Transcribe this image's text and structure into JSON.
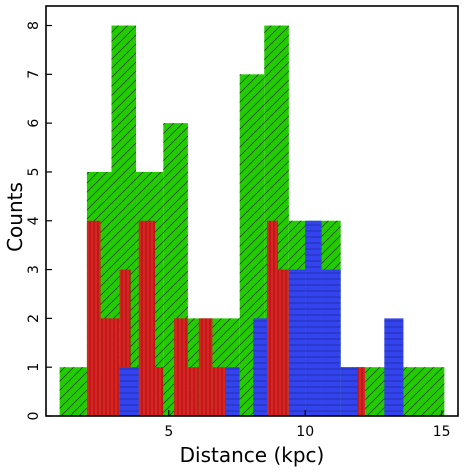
{
  "chart_data": {
    "type": "bar",
    "title": "",
    "xlabel": "Distance (kpc)",
    "ylabel": "Counts",
    "xlim": [
      0.5,
      15.6
    ],
    "ylim": [
      0,
      8.4
    ],
    "xticks": [
      5,
      10,
      15
    ],
    "yticks": [
      0,
      1,
      2,
      3,
      4,
      5,
      6,
      7,
      8
    ],
    "grid": false,
    "legend": "none",
    "series": [
      {
        "color": "#22cc00",
        "hatch": "diagonal",
        "bins": [
          {
            "x0": 1.0,
            "x1": 2.0,
            "value": 1
          },
          {
            "x0": 2.0,
            "x1": 2.9,
            "value": 5
          },
          {
            "x0": 2.9,
            "x1": 3.8,
            "value": 8
          },
          {
            "x0": 3.8,
            "x1": 4.8,
            "value": 5
          },
          {
            "x0": 4.8,
            "x1": 5.7,
            "value": 6
          },
          {
            "x0": 5.7,
            "x1": 6.6,
            "value": 2
          },
          {
            "x0": 6.6,
            "x1": 7.6,
            "value": 2
          },
          {
            "x0": 7.6,
            "x1": 8.5,
            "value": 7
          },
          {
            "x0": 8.5,
            "x1": 9.4,
            "value": 8
          },
          {
            "x0": 9.4,
            "x1": 10.4,
            "value": 4
          },
          {
            "x0": 10.4,
            "x1": 11.3,
            "value": 4
          },
          {
            "x0": 11.3,
            "x1": 12.2,
            "value": 1
          },
          {
            "x0": 12.2,
            "x1": 15.1,
            "value": 1
          }
        ]
      },
      {
        "color": "#dd2222",
        "hatch": "vertical",
        "bins": [
          {
            "x0": 2.0,
            "x1": 2.5,
            "value": 4
          },
          {
            "x0": 2.5,
            "x1": 2.9,
            "value": 2
          },
          {
            "x0": 2.9,
            "x1": 3.2,
            "value": 2
          },
          {
            "x0": 3.2,
            "x1": 3.6,
            "value": 3
          },
          {
            "x0": 3.6,
            "x1": 3.9,
            "value": 1
          },
          {
            "x0": 3.9,
            "x1": 4.5,
            "value": 4
          },
          {
            "x0": 4.5,
            "x1": 4.8,
            "value": 1
          },
          {
            "x0": 5.2,
            "x1": 5.7,
            "value": 2
          },
          {
            "x0": 5.7,
            "x1": 6.1,
            "value": 1
          },
          {
            "x0": 6.1,
            "x1": 6.6,
            "value": 2
          },
          {
            "x0": 6.6,
            "x1": 7.1,
            "value": 1
          },
          {
            "x0": 8.6,
            "x1": 9.0,
            "value": 4
          },
          {
            "x0": 9.0,
            "x1": 9.4,
            "value": 3
          },
          {
            "x0": 11.9,
            "x1": 12.2,
            "value": 1
          }
        ]
      },
      {
        "color": "#3344ee",
        "hatch": "horizontal",
        "bins": [
          {
            "x0": 3.2,
            "x1": 3.9,
            "value": 1
          },
          {
            "x0": 7.1,
            "x1": 7.6,
            "value": 1
          },
          {
            "x0": 8.1,
            "x1": 8.6,
            "value": 2
          },
          {
            "x0": 9.4,
            "x1": 10.0,
            "value": 3
          },
          {
            "x0": 10.0,
            "x1": 10.6,
            "value": 4
          },
          {
            "x0": 10.6,
            "x1": 11.3,
            "value": 3
          },
          {
            "x0": 11.3,
            "x1": 11.9,
            "value": 1
          },
          {
            "x0": 12.9,
            "x1": 13.6,
            "value": 2
          }
        ]
      }
    ]
  }
}
